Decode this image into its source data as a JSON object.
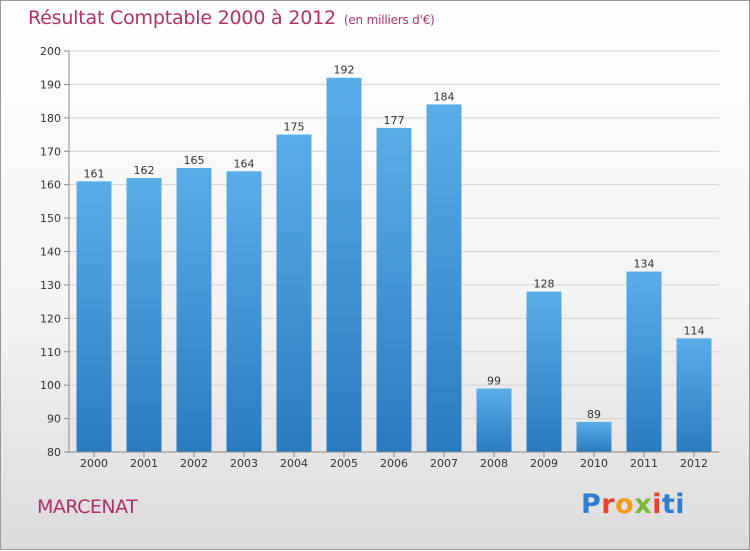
{
  "title": "Résultat Comptable 2000 à 2012",
  "subtitle": "(en milliers d'€)",
  "city": "MARCENAT",
  "logo": {
    "p1": "P",
    "p2": "r",
    "p3": "o",
    "p4": "x",
    "p5": "i",
    "p6": "ti"
  },
  "colors": {
    "bar": "#4a9edd",
    "title": "#b0306a"
  },
  "chart_data": {
    "type": "bar",
    "title": "Résultat Comptable 2000 à 2012",
    "xlabel": "",
    "ylabel": "",
    "categories": [
      "2000",
      "2001",
      "2002",
      "2003",
      "2004",
      "2005",
      "2006",
      "2007",
      "2008",
      "2009",
      "2010",
      "2011",
      "2012"
    ],
    "values": [
      161,
      162,
      165,
      164,
      175,
      192,
      177,
      184,
      99,
      128,
      89,
      134,
      114
    ],
    "ylim": [
      80,
      200
    ],
    "yticks": [
      80,
      90,
      100,
      110,
      120,
      130,
      140,
      150,
      160,
      170,
      180,
      190,
      200
    ],
    "grid": true
  }
}
